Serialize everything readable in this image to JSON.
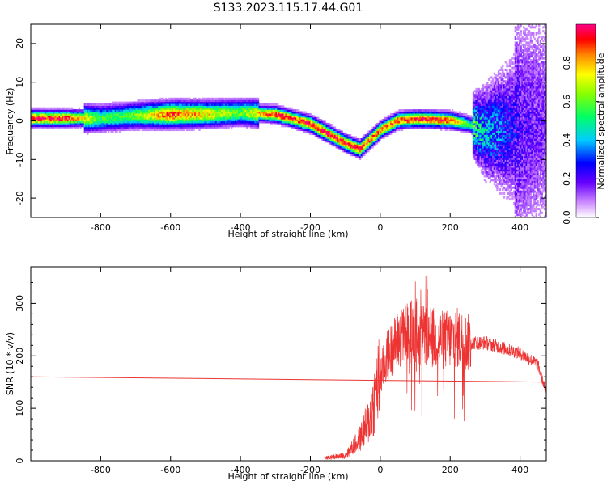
{
  "title": "S133.2023.115.17.44.G01",
  "chart_data": [
    {
      "type": "heatmap",
      "xlabel": "Height of straight line (km)",
      "ylabel": "Frequency (Hz)",
      "xlim": [
        -1000,
        475
      ],
      "ylim": [
        -25,
        25
      ],
      "xticks": [
        -800,
        -600,
        -400,
        -200,
        0,
        200,
        400
      ],
      "yticks": [
        -20,
        -10,
        0,
        10,
        20
      ],
      "colorbar": {
        "label": "Normalized spectral amplitude",
        "range": [
          0,
          1
        ],
        "ticks": [
          0.0,
          0.2,
          0.4,
          0.6,
          0.8
        ],
        "colormap": "rainbow (white-purple-blue-cyan-green-yellow-red-magenta)"
      },
      "ridge": {
        "x": [
          -1000,
          -900,
          -800,
          -700,
          -600,
          -500,
          -400,
          -300,
          -250,
          -200,
          -150,
          -100,
          -60,
          -30,
          0,
          50,
          100,
          150,
          200,
          250,
          300,
          350,
          400,
          475
        ],
        "freq": [
          0.5,
          0.5,
          0.5,
          1.2,
          1.5,
          1.6,
          2.0,
          1.5,
          0.3,
          -1.0,
          -3.5,
          -6.0,
          -7.5,
          -5.0,
          -2.5,
          0.0,
          0.3,
          0.2,
          0.0,
          -1.0,
          -3.0,
          -2.5,
          -2.0,
          0.0
        ],
        "amplitude": [
          1.0,
          0.95,
          0.55,
          0.6,
          0.9,
          0.75,
          0.6,
          0.95,
          0.9,
          0.95,
          0.95,
          0.95,
          0.95,
          0.9,
          0.85,
          0.9,
          0.95,
          0.95,
          0.9,
          0.55,
          0.4,
          0.3,
          0.2,
          0.15
        ]
      }
    },
    {
      "type": "line",
      "xlabel": "Height of straight line (km)",
      "ylabel": "SNR (10 * v/v)",
      "xlim": [
        -1000,
        475
      ],
      "ylim": [
        0,
        370
      ],
      "xticks": [
        -800,
        -600,
        -400,
        -200,
        0,
        200,
        400
      ],
      "yticks": [
        0,
        100,
        200,
        300
      ],
      "color": "#ee3333",
      "series": [
        {
          "x": [
            -160,
            -100,
            -60,
            -30,
            -15,
            0,
            20,
            50,
            80,
            100,
            120,
            150,
            180,
            220,
            250,
            300,
            350,
            400,
            450,
            475
          ],
          "values": [
            5,
            10,
            40,
            80,
            120,
            160,
            200,
            230,
            245,
            250,
            240,
            235,
            230,
            235,
            225,
            225,
            215,
            205,
            185,
            130
          ]
        },
        {
          "x": [
            -1000,
            475
          ],
          "values": [
            160,
            150
          ]
        }
      ]
    }
  ]
}
